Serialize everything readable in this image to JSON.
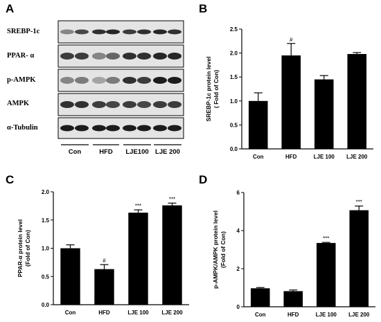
{
  "panels": {
    "a": {
      "letter": "A",
      "blot_labels": [
        "SREBP-1c",
        "PPAR- α",
        "p-AMPK",
        "AMPK",
        "α-Tubulin"
      ],
      "group_labels": [
        "Con",
        "HFD",
        "LJE100",
        "LJE 200"
      ]
    },
    "b": {
      "letter": "B"
    },
    "c": {
      "letter": "C"
    },
    "d": {
      "letter": "D"
    }
  },
  "chart_data": [
    {
      "panel": "B",
      "type": "bar",
      "categories": [
        "Con",
        "HFD",
        "LJE 100",
        "LJE 200"
      ],
      "values": [
        1.0,
        1.95,
        1.45,
        1.98
      ],
      "errors": [
        0.17,
        0.25,
        0.08,
        0.03
      ],
      "significance": [
        "",
        "#",
        "",
        ""
      ],
      "ylabel_lines": [
        "SREBP-1c protein level",
        "( Fold of Con)"
      ],
      "ylim": [
        0,
        2.5
      ],
      "yticks": [
        0,
        0.5,
        1.0,
        1.5,
        2.0,
        2.5
      ],
      "ytick_labels": [
        "0.0",
        "0.5",
        "1.0",
        "1.5",
        "2.0",
        "2.5"
      ],
      "bar_color": "#000000"
    },
    {
      "panel": "C",
      "type": "bar",
      "categories": [
        "Con",
        "HFD",
        "LJE 100",
        "LJE 200"
      ],
      "values": [
        1.0,
        0.63,
        1.63,
        1.76
      ],
      "errors": [
        0.06,
        0.08,
        0.05,
        0.04
      ],
      "significance": [
        "",
        "#",
        "***",
        "***"
      ],
      "ylabel_lines": [
        "PPAR-α  protein level",
        "(Fold of Con)"
      ],
      "ylim": [
        0,
        2.0
      ],
      "yticks": [
        0,
        0.5,
        1.0,
        1.5,
        2.0
      ],
      "ytick_labels": [
        "0.0",
        "0.5",
        "1.0",
        "1.5",
        "2.0"
      ],
      "bar_color": "#000000"
    },
    {
      "panel": "D",
      "type": "bar",
      "categories": [
        "Con",
        "HFD",
        "LJE 100",
        "LJE 200"
      ],
      "values": [
        0.97,
        0.82,
        3.35,
        5.07
      ],
      "errors": [
        0.04,
        0.06,
        0.03,
        0.22
      ],
      "significance": [
        "",
        "",
        "***",
        "***"
      ],
      "ylabel_lines": [
        "p-AMPK/AMPK protein level",
        "(Fold of Con)"
      ],
      "ylim": [
        0,
        6
      ],
      "yticks": [
        0,
        2,
        4,
        6
      ],
      "ytick_labels": [
        "0",
        "2",
        "4",
        "6"
      ],
      "bar_color": "#000000"
    }
  ]
}
